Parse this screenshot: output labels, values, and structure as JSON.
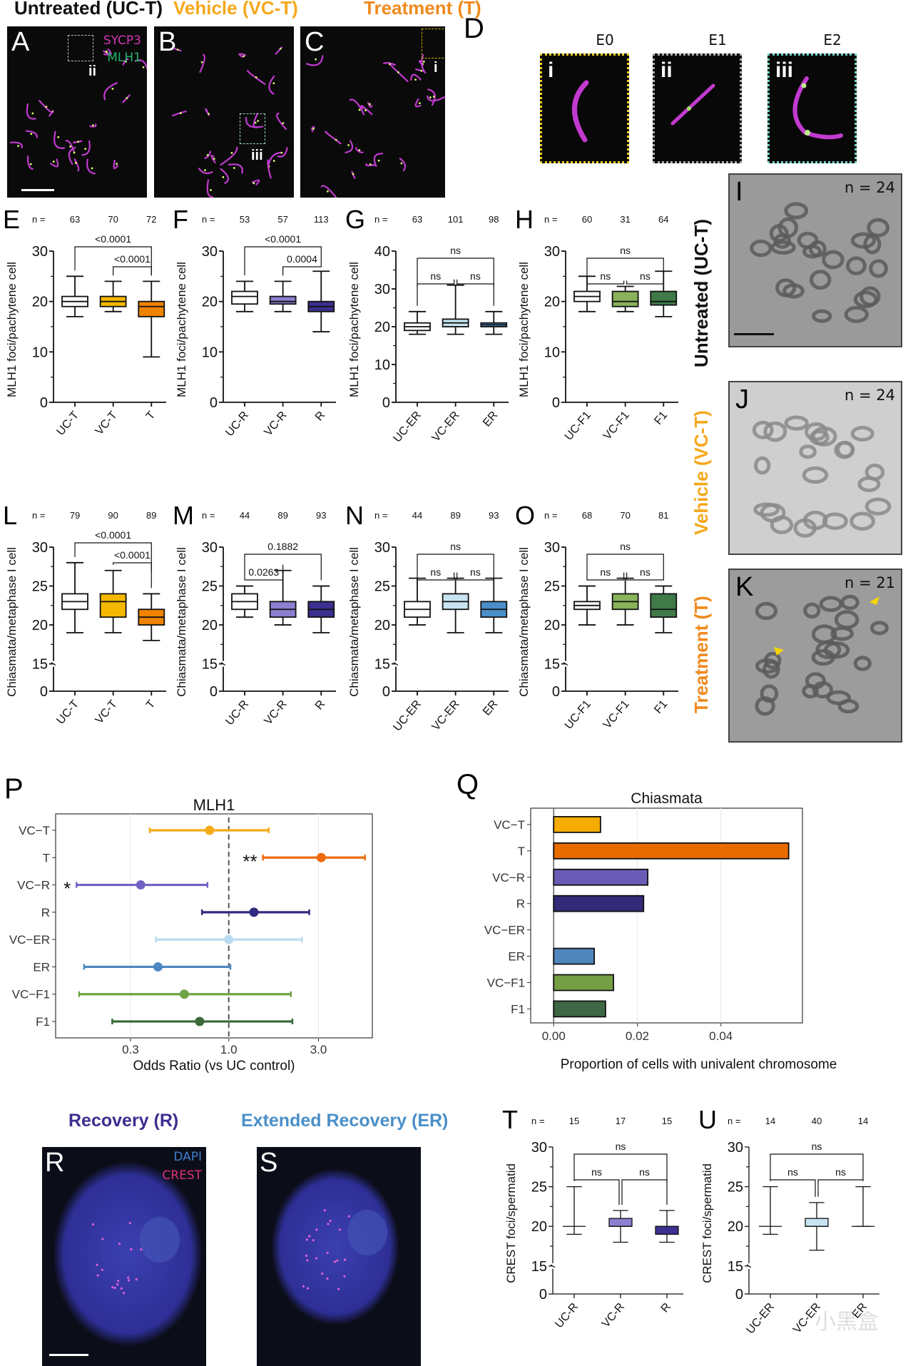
{
  "titles": {
    "untreated": "Untreated (UC-T)",
    "vehicle": "Vehicle (VC-T)",
    "treatment": "Treatment (T)",
    "recovery": "Recovery (R)",
    "extended_recovery": "Extended Recovery (ER)"
  },
  "colors": {
    "untreated": "#111111",
    "vehicle": "#f5a81c",
    "treatment": "#f08a1e",
    "recovery": "#3b2f8f",
    "extended_recovery": "#4a8fc8",
    "sycp3": "#d236b4",
    "mlh1": "#1fb36a",
    "dapi": "#3d7fd0",
    "crest": "#e0307a"
  },
  "panels": {
    "A": "A",
    "B": "B",
    "C": "C",
    "D": "D",
    "E": "E",
    "F": "F",
    "G": "G",
    "H": "H",
    "I": "I",
    "J": "J",
    "K": "K",
    "L": "L",
    "M": "M",
    "N": "N",
    "O": "O",
    "P": "P",
    "Q": "Q",
    "R": "R",
    "S": "S",
    "T": "T",
    "U": "U"
  },
  "microscopy": {
    "legend_sycp3": "SYCP3",
    "legend_mlh1": "MLH1",
    "inset_markers": {
      "A": "ii",
      "B": "iii",
      "C": "i"
    },
    "insets": [
      {
        "title": "E0",
        "label": "i",
        "border": "#f2d21b"
      },
      {
        "title": "E1",
        "label": "ii",
        "border": "#b0b0b0"
      },
      {
        "title": "E2",
        "label": "iii",
        "border": "#6fd6c4"
      }
    ],
    "metaphase": [
      {
        "panel": "I",
        "n": "n = 24",
        "side_label": "Untreated (UC-T)"
      },
      {
        "panel": "J",
        "n": "n = 24",
        "side_label": "Vehicle (VC-T)"
      },
      {
        "panel": "K",
        "n": "n = 21",
        "side_label": "Treatment (T)"
      }
    ],
    "legend_dapi": "DAPI",
    "legend_crest": "CREST"
  },
  "chart_data": [
    {
      "id": "E",
      "type": "box",
      "ylabel": "MLH1 foci/pachytene cell",
      "ylim": [
        0,
        30
      ],
      "yticks": [
        0,
        10,
        20,
        30
      ],
      "minor_step": 5,
      "axis_break": false,
      "n_label": "n =",
      "n": [
        "63",
        "70",
        "72"
      ],
      "categories": [
        "UC-T",
        "VC-T",
        "T"
      ],
      "fills": [
        "#ffffff",
        "#f5b800",
        "#f08300"
      ],
      "boxes": [
        {
          "min": 17,
          "q1": 19,
          "median": 20,
          "q3": 21,
          "max": 25
        },
        {
          "min": 18,
          "q1": 19,
          "median": 20,
          "q3": 21,
          "max": 24
        },
        {
          "min": 9,
          "q1": 17,
          "median": 19,
          "q3": 20,
          "max": 24
        }
      ],
      "brackets": [
        {
          "from": 0,
          "to": 2,
          "label": "<0.0001",
          "level": 2
        },
        {
          "from": 1,
          "to": 2,
          "label": "<0.0001",
          "level": 1
        }
      ]
    },
    {
      "id": "F",
      "type": "box",
      "ylabel": "MLH1 foci/pachytene cell",
      "ylim": [
        0,
        30
      ],
      "yticks": [
        0,
        10,
        20,
        30
      ],
      "minor_step": 5,
      "axis_break": false,
      "n_label": "n =",
      "n": [
        "53",
        "57",
        "113"
      ],
      "categories": [
        "UC-R",
        "VC-R",
        "R"
      ],
      "fills": [
        "#ffffff",
        "#8a7fd0",
        "#3b2f8f"
      ],
      "boxes": [
        {
          "min": 18,
          "q1": 19.5,
          "median": 21,
          "q3": 22,
          "max": 24
        },
        {
          "min": 18,
          "q1": 19.5,
          "median": 20,
          "q3": 21,
          "max": 24
        },
        {
          "min": 14,
          "q1": 18,
          "median": 19,
          "q3": 20,
          "max": 26
        }
      ],
      "brackets": [
        {
          "from": 0,
          "to": 2,
          "label": "<0.0001",
          "level": 2
        },
        {
          "from": 1,
          "to": 2,
          "label": "0.0004",
          "level": 1
        }
      ]
    },
    {
      "id": "G",
      "type": "box",
      "ylabel": "MLH1 foci/pachytene cell",
      "ylim": [
        0,
        40
      ],
      "yticks": [
        0,
        10,
        20,
        30,
        40
      ],
      "minor_step": 5,
      "axis_break": false,
      "n_label": "n =",
      "n": [
        "63",
        "101",
        "98"
      ],
      "categories": [
        "UC-ER",
        "VC-ER",
        "ER"
      ],
      "fills": [
        "#ffffff",
        "#c8e4f2",
        "#4a8fc8"
      ],
      "boxes": [
        {
          "min": 18,
          "q1": 19,
          "median": 20,
          "q3": 21,
          "max": 24
        },
        {
          "min": 18,
          "q1": 20,
          "median": 21,
          "q3": 22,
          "max": 31
        },
        {
          "min": 18,
          "q1": 20,
          "median": 20.5,
          "q3": 21,
          "max": 24
        }
      ],
      "brackets": [
        {
          "from": 0,
          "to": 2,
          "label": "ns",
          "level": 2
        },
        {
          "from": 0,
          "to": 1,
          "label": "ns",
          "level": 1
        },
        {
          "from": 1,
          "to": 2,
          "label": "ns",
          "level": 1
        }
      ]
    },
    {
      "id": "H",
      "type": "box",
      "ylabel": "MLH1 foci/pachytene cell",
      "ylim": [
        0,
        30
      ],
      "yticks": [
        0,
        10,
        20,
        30
      ],
      "minor_step": 5,
      "axis_break": false,
      "n_label": "n =",
      "n": [
        "60",
        "31",
        "64"
      ],
      "categories": [
        "UC-F1",
        "VC-F1",
        "F1"
      ],
      "fills": [
        "#ffffff",
        "#8ab25a",
        "#3f7a48"
      ],
      "boxes": [
        {
          "min": 18,
          "q1": 20,
          "median": 21,
          "q3": 22,
          "max": 25
        },
        {
          "min": 18,
          "q1": 19,
          "median": 20,
          "q3": 22,
          "max": 23
        },
        {
          "min": 17,
          "q1": 19.3,
          "median": 20,
          "q3": 22,
          "max": 26
        }
      ],
      "brackets": [
        {
          "from": 0,
          "to": 2,
          "label": "ns",
          "level": 2
        },
        {
          "from": 0,
          "to": 1,
          "label": "ns",
          "level": 1
        },
        {
          "from": 1,
          "to": 2,
          "label": "ns",
          "level": 1
        }
      ]
    },
    {
      "id": "L",
      "type": "box",
      "ylabel": "Chiasmata/metaphase I cell",
      "ylim": [
        15,
        30
      ],
      "yticks": [
        0,
        15,
        20,
        25,
        30
      ],
      "minor_step": 2.5,
      "axis_break": true,
      "n_label": "n =",
      "n": [
        "79",
        "90",
        "89"
      ],
      "categories": [
        "UC-T",
        "VC-T",
        "T"
      ],
      "fills": [
        "#ffffff",
        "#f5b800",
        "#f08300"
      ],
      "boxes": [
        {
          "min": 19,
          "q1": 22,
          "median": 23,
          "q3": 24,
          "max": 28
        },
        {
          "min": 19,
          "q1": 21,
          "median": 23,
          "q3": 24,
          "max": 27
        },
        {
          "min": 18,
          "q1": 20,
          "median": 21,
          "q3": 22,
          "max": 24
        }
      ],
      "brackets": [
        {
          "from": 0,
          "to": 2,
          "label": "<0.0001",
          "level": 2
        },
        {
          "from": 1,
          "to": 2,
          "label": "<0.0001",
          "level": 1
        }
      ]
    },
    {
      "id": "M",
      "type": "box",
      "ylabel": "Chiasmata/metaphase I cell",
      "ylim": [
        15,
        30
      ],
      "yticks": [
        0,
        15,
        20,
        25,
        30
      ],
      "minor_step": 2.5,
      "axis_break": true,
      "n_label": "n =",
      "n": [
        "44",
        "89",
        "93"
      ],
      "categories": [
        "UC-R",
        "VC-R",
        "R"
      ],
      "fills": [
        "#ffffff",
        "#8a7fd0",
        "#3b2f8f"
      ],
      "boxes": [
        {
          "min": 21,
          "q1": 22,
          "median": 23,
          "q3": 24,
          "max": 25
        },
        {
          "min": 20,
          "q1": 21,
          "median": 22,
          "q3": 23,
          "max": 27
        },
        {
          "min": 19,
          "q1": 21,
          "median": 22,
          "q3": 23,
          "max": 25
        }
      ],
      "brackets": [
        {
          "from": 0,
          "to": 2,
          "label": "0.1882",
          "level": 2
        },
        {
          "from": 0,
          "to": 1,
          "label": "0.0263",
          "level": 1
        }
      ]
    },
    {
      "id": "N",
      "type": "box",
      "ylabel": "Chiasmata/metaphase I cell",
      "ylim": [
        15,
        30
      ],
      "yticks": [
        0,
        15,
        20,
        25,
        30
      ],
      "minor_step": 2.5,
      "axis_break": true,
      "n_label": "n =",
      "n": [
        "44",
        "89",
        "93"
      ],
      "categories": [
        "UC-ER",
        "VC-ER",
        "ER"
      ],
      "fills": [
        "#ffffff",
        "#c8e4f2",
        "#4a8fc8"
      ],
      "boxes": [
        {
          "min": 20,
          "q1": 21,
          "median": 22,
          "q3": 23,
          "max": 26
        },
        {
          "min": 19,
          "q1": 22,
          "median": 23,
          "q3": 24,
          "max": 26
        },
        {
          "min": 19,
          "q1": 21,
          "median": 22,
          "q3": 23,
          "max": 26
        }
      ],
      "brackets": [
        {
          "from": 0,
          "to": 2,
          "label": "ns",
          "level": 2
        },
        {
          "from": 0,
          "to": 1,
          "label": "ns",
          "level": 1
        },
        {
          "from": 1,
          "to": 2,
          "label": "ns",
          "level": 1
        }
      ]
    },
    {
      "id": "O",
      "type": "box",
      "ylabel": "Chiasmata/metaphase I cell",
      "ylim": [
        15,
        30
      ],
      "yticks": [
        0,
        15,
        20,
        25,
        30
      ],
      "minor_step": 2.5,
      "axis_break": true,
      "n_label": "n =",
      "n": [
        "68",
        "70",
        "81"
      ],
      "categories": [
        "UC-F1",
        "VC-F1",
        "F1"
      ],
      "fills": [
        "#ffffff",
        "#8ab25a",
        "#3f7a48"
      ],
      "boxes": [
        {
          "min": 20,
          "q1": 22,
          "median": 22.5,
          "q3": 23,
          "max": 25
        },
        {
          "min": 20,
          "q1": 22,
          "median": 23,
          "q3": 24,
          "max": 26
        },
        {
          "min": 19,
          "q1": 21,
          "median": 22,
          "q3": 24,
          "max": 25
        }
      ],
      "brackets": [
        {
          "from": 0,
          "to": 2,
          "label": "ns",
          "level": 2
        },
        {
          "from": 0,
          "to": 1,
          "label": "ns",
          "level": 1
        },
        {
          "from": 1,
          "to": 2,
          "label": "ns",
          "level": 1
        }
      ]
    },
    {
      "id": "P",
      "type": "forest",
      "title": "MLH1",
      "xlabel": "Odds Ratio (vs UC control)",
      "xscale": "log",
      "xlim": [
        0.12,
        5.8
      ],
      "xticks": [
        0.3,
        1.0,
        3.0
      ],
      "xtick_labels": [
        "0.3",
        "1.0",
        "3.0"
      ],
      "reference": 1.0,
      "categories": [
        "VC−T",
        "T",
        "VC−R",
        "R",
        "VC−ER",
        "ER",
        "VC−F1",
        "F1"
      ],
      "colors": [
        "#f5ab16",
        "#ee6a0a",
        "#7261c4",
        "#312a80",
        "#b9dcee",
        "#4d87c0",
        "#6fa545",
        "#3b6b3c"
      ],
      "estimate": [
        0.79,
        3.1,
        0.34,
        1.36,
        1.0,
        0.42,
        0.58,
        0.7
      ],
      "lower": [
        0.38,
        1.52,
        0.155,
        0.72,
        0.41,
        0.17,
        0.16,
        0.24
      ],
      "upper": [
        1.63,
        5.3,
        0.77,
        2.68,
        2.45,
        1.02,
        2.14,
        2.18
      ],
      "annotations": [
        {
          "row": 1,
          "text": "**"
        },
        {
          "row": 2,
          "text": "*"
        }
      ]
    },
    {
      "id": "Q",
      "type": "bar",
      "orientation": "horizontal",
      "title": "Chiasmata",
      "xlabel": "Proportion of cells with univalent chromosome",
      "xlim": [
        -0.0055,
        0.0595
      ],
      "xticks": [
        0.0,
        0.02,
        0.04
      ],
      "xtick_labels": [
        "0.00",
        "0.02",
        "0.04"
      ],
      "categories": [
        "VC−T",
        "T",
        "VC−R",
        "R",
        "VC−ER",
        "ER",
        "VC−F1",
        "F1"
      ],
      "colors": [
        "#f5ab00",
        "#e86b00",
        "#6a5cb6",
        "#332a79",
        "#ffffff",
        "#4f87bd",
        "#769f45",
        "#3d6843"
      ],
      "values": [
        0.0112,
        0.0562,
        0.0225,
        0.0215,
        0.0,
        0.0097,
        0.0143,
        0.0124
      ]
    },
    {
      "id": "T",
      "type": "box",
      "ylabel": "CREST foci/spermatid",
      "ylim": [
        15,
        30
      ],
      "yticks": [
        0,
        15,
        20,
        25,
        30
      ],
      "minor_step": 2.5,
      "axis_break": true,
      "thin": true,
      "n_label": "n =",
      "n": [
        "15",
        "17",
        "15"
      ],
      "categories": [
        "UC-R",
        "VC-R",
        "R"
      ],
      "fills": [
        "#ffffff",
        "#8a7fd0",
        "#3b2f8f"
      ],
      "boxes": [
        {
          "min": 19,
          "q1": 20,
          "median": 20,
          "q3": 20,
          "max": 25
        },
        {
          "min": 18,
          "q1": 20,
          "median": 20,
          "q3": 21,
          "max": 22
        },
        {
          "min": 18,
          "q1": 19,
          "median": 20,
          "q3": 20,
          "max": 22
        }
      ],
      "brackets": [
        {
          "from": 0,
          "to": 2,
          "label": "ns",
          "level": 2
        },
        {
          "from": 0,
          "to": 1,
          "label": "ns",
          "level": 1
        },
        {
          "from": 1,
          "to": 2,
          "label": "ns",
          "level": 1
        }
      ]
    },
    {
      "id": "U",
      "type": "box",
      "ylabel": "CREST foci/spermatid",
      "ylim": [
        15,
        30
      ],
      "yticks": [
        0,
        15,
        20,
        25,
        30
      ],
      "minor_step": 2.5,
      "axis_break": true,
      "thin": true,
      "n_label": "n =",
      "n": [
        "14",
        "40",
        "14"
      ],
      "categories": [
        "UC-ER",
        "VC-ER",
        "ER"
      ],
      "fills": [
        "#ffffff",
        "#c8e4f2",
        "#4a8fc8"
      ],
      "boxes": [
        {
          "min": 19,
          "q1": 20,
          "median": 20,
          "q3": 20,
          "max": 25
        },
        {
          "min": 17,
          "q1": 20,
          "median": 20,
          "q3": 21,
          "max": 23
        },
        {
          "min": 20,
          "q1": 20,
          "median": 20,
          "q3": 20,
          "max": 25
        }
      ],
      "brackets": [
        {
          "from": 0,
          "to": 2,
          "label": "ns",
          "level": 2
        },
        {
          "from": 0,
          "to": 1,
          "label": "ns",
          "level": 1
        },
        {
          "from": 1,
          "to": 2,
          "label": "ns",
          "level": 1
        }
      ]
    }
  ],
  "watermark": "小黑盒"
}
